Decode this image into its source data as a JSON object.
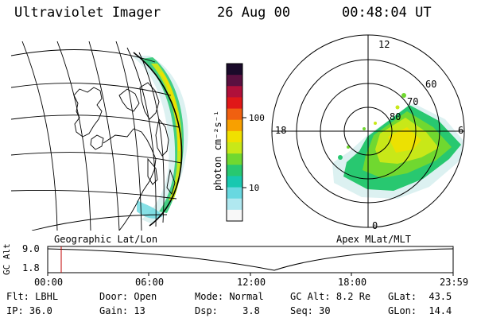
{
  "header": {
    "instrument": "Ultraviolet Imager",
    "date": "26 Aug 00",
    "time": "00:48:04 UT"
  },
  "geo_panel": {
    "label": "Geographic Lat/Lon"
  },
  "polar_panel": {
    "label": "Apex MLat/MLT",
    "mlt_labels": [
      "12",
      "18",
      "6",
      "0"
    ],
    "lat_labels": [
      "60",
      "70",
      "80"
    ]
  },
  "colorbar": {
    "unit_label": "photon cm⁻²s⁻¹",
    "ticks": [
      "100",
      "10"
    ],
    "colors": [
      "#1a0a2a",
      "#5a1040",
      "#b0103a",
      "#e01818",
      "#f06010",
      "#f8a000",
      "#f0e000",
      "#c8e818",
      "#70d830",
      "#28c870",
      "#18c8b0",
      "#68d8e0",
      "#b0e8f0",
      "#f8f8f8"
    ]
  },
  "timeline": {
    "axis_label": "GC Alt",
    "y_ticks": [
      "9.0",
      "1.8"
    ],
    "x_ticks": [
      "00:00",
      "06:00",
      "12:00",
      "18:00",
      "23:59"
    ],
    "marker_color": "#c00000"
  },
  "info": {
    "row1": [
      {
        "key": "Flt:",
        "value": "LBHL"
      },
      {
        "key": "Door:",
        "value": "Open"
      },
      {
        "key": "Mode:",
        "value": "Normal"
      },
      {
        "key": "GC Alt:",
        "value": "8.2 Re"
      },
      {
        "key": "GLat:",
        "value": "43.5"
      }
    ],
    "row2": [
      {
        "key": "IP:",
        "value": "36.0"
      },
      {
        "key": "Gain:",
        "value": "13"
      },
      {
        "key": "Dsp:",
        "value": "3.8"
      },
      {
        "key": "Seq:",
        "value": "30"
      },
      {
        "key": "GLon:",
        "value": "14.4"
      }
    ]
  }
}
